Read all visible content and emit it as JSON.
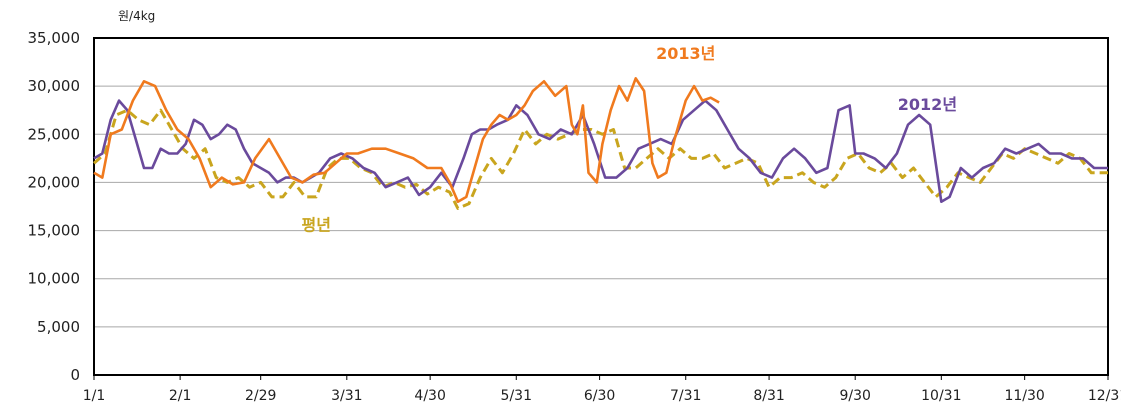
{
  "chart_data": {
    "type": "line",
    "ylabel": "원/4kg",
    "ylim": [
      0,
      35000
    ],
    "yticks": [
      0,
      5000,
      10000,
      15000,
      20000,
      25000,
      30000,
      35000
    ],
    "ytick_labels": [
      "0",
      "5,000",
      "10,000",
      "15,000",
      "20,000",
      "25,000",
      "30,000",
      "35,000"
    ],
    "x_unit": "day of year",
    "xlim": [
      0,
      365
    ],
    "xticks": [
      0,
      31,
      60,
      91,
      121,
      152,
      182,
      213,
      243,
      274,
      305,
      335,
      365
    ],
    "xtick_labels": [
      "1/1",
      "2/1",
      "2/29",
      "3/31",
      "4/30",
      "5/31",
      "6/30",
      "7/31",
      "8/31",
      "9/30",
      "10/31",
      "11/30",
      "12/31"
    ],
    "grid": true,
    "series": [
      {
        "name": "2013년",
        "color": "#f07a1e",
        "style": "solid",
        "points": [
          [
            0,
            21000
          ],
          [
            3,
            20500
          ],
          [
            6,
            25000
          ],
          [
            10,
            25500
          ],
          [
            14,
            28500
          ],
          [
            18,
            30500
          ],
          [
            22,
            30000
          ],
          [
            26,
            27500
          ],
          [
            30,
            25500
          ],
          [
            34,
            24500
          ],
          [
            38,
            22500
          ],
          [
            42,
            19500
          ],
          [
            46,
            20500
          ],
          [
            50,
            19800
          ],
          [
            54,
            20000
          ],
          [
            58,
            22500
          ],
          [
            63,
            24500
          ],
          [
            67,
            22500
          ],
          [
            71,
            20500
          ],
          [
            75,
            20000
          ],
          [
            79,
            20800
          ],
          [
            83,
            21000
          ],
          [
            87,
            22000
          ],
          [
            91,
            23000
          ],
          [
            95,
            23000
          ],
          [
            100,
            23500
          ],
          [
            105,
            23500
          ],
          [
            110,
            23000
          ],
          [
            115,
            22500
          ],
          [
            120,
            21500
          ],
          [
            125,
            21500
          ],
          [
            128,
            20000
          ],
          [
            131,
            18000
          ],
          [
            134,
            18500
          ],
          [
            137,
            21500
          ],
          [
            140,
            24500
          ],
          [
            143,
            26000
          ],
          [
            146,
            27000
          ],
          [
            149,
            26500
          ],
          [
            152,
            27000
          ],
          [
            155,
            28000
          ],
          [
            158,
            29500
          ],
          [
            162,
            30500
          ],
          [
            166,
            29000
          ],
          [
            170,
            30000
          ],
          [
            172,
            26000
          ],
          [
            174,
            25000
          ],
          [
            176,
            28000
          ],
          [
            178,
            21000
          ],
          [
            181,
            20000
          ],
          [
            183,
            24000
          ],
          [
            186,
            27500
          ],
          [
            189,
            30000
          ],
          [
            192,
            28500
          ],
          [
            195,
            30800
          ],
          [
            198,
            29500
          ],
          [
            201,
            22000
          ],
          [
            203,
            20500
          ],
          [
            206,
            21000
          ],
          [
            209,
            24500
          ],
          [
            213,
            28500
          ],
          [
            216,
            30000
          ],
          [
            219,
            28500
          ],
          [
            222,
            28800
          ],
          [
            225,
            28300
          ]
        ]
      },
      {
        "name": "2012년",
        "color": "#6a4a9c",
        "style": "solid",
        "points": [
          [
            0,
            22500
          ],
          [
            3,
            23000
          ],
          [
            6,
            26500
          ],
          [
            9,
            28500
          ],
          [
            12,
            27500
          ],
          [
            15,
            24500
          ],
          [
            18,
            21500
          ],
          [
            21,
            21500
          ],
          [
            24,
            23500
          ],
          [
            27,
            23000
          ],
          [
            30,
            23000
          ],
          [
            33,
            24000
          ],
          [
            36,
            26500
          ],
          [
            39,
            26000
          ],
          [
            42,
            24500
          ],
          [
            45,
            25000
          ],
          [
            48,
            26000
          ],
          [
            51,
            25500
          ],
          [
            54,
            23500
          ],
          [
            57,
            22000
          ],
          [
            60,
            21500
          ],
          [
            63,
            21000
          ],
          [
            66,
            20000
          ],
          [
            69,
            20500
          ],
          [
            72,
            20500
          ],
          [
            75,
            20000
          ],
          [
            78,
            20500
          ],
          [
            81,
            21000
          ],
          [
            85,
            22500
          ],
          [
            89,
            23000
          ],
          [
            93,
            22500
          ],
          [
            97,
            21500
          ],
          [
            101,
            21000
          ],
          [
            105,
            19500
          ],
          [
            109,
            20000
          ],
          [
            113,
            20500
          ],
          [
            117,
            18700
          ],
          [
            121,
            19500
          ],
          [
            125,
            21000
          ],
          [
            129,
            19500
          ],
          [
            133,
            22500
          ],
          [
            136,
            25000
          ],
          [
            139,
            25500
          ],
          [
            142,
            25500
          ],
          [
            145,
            26000
          ],
          [
            149,
            26500
          ],
          [
            152,
            28000
          ],
          [
            156,
            27000
          ],
          [
            160,
            25000
          ],
          [
            164,
            24500
          ],
          [
            168,
            25500
          ],
          [
            172,
            25000
          ],
          [
            176,
            27000
          ],
          [
            180,
            24000
          ],
          [
            184,
            20500
          ],
          [
            188,
            20500
          ],
          [
            192,
            21500
          ],
          [
            196,
            23500
          ],
          [
            200,
            24000
          ],
          [
            204,
            24500
          ],
          [
            208,
            24000
          ],
          [
            212,
            26500
          ],
          [
            216,
            27500
          ],
          [
            220,
            28500
          ],
          [
            224,
            27500
          ],
          [
            228,
            25500
          ],
          [
            232,
            23500
          ],
          [
            236,
            22500
          ],
          [
            240,
            21000
          ],
          [
            244,
            20500
          ],
          [
            248,
            22500
          ],
          [
            252,
            23500
          ],
          [
            256,
            22500
          ],
          [
            260,
            21000
          ],
          [
            264,
            21500
          ],
          [
            268,
            27500
          ],
          [
            272,
            28000
          ],
          [
            274,
            23000
          ],
          [
            277,
            23000
          ],
          [
            281,
            22500
          ],
          [
            285,
            21500
          ],
          [
            289,
            23000
          ],
          [
            293,
            26000
          ],
          [
            297,
            27000
          ],
          [
            301,
            26000
          ],
          [
            305,
            18000
          ],
          [
            308,
            18500
          ],
          [
            312,
            21500
          ],
          [
            316,
            20500
          ],
          [
            320,
            21500
          ],
          [
            324,
            22000
          ],
          [
            328,
            23500
          ],
          [
            332,
            23000
          ],
          [
            336,
            23500
          ],
          [
            340,
            24000
          ],
          [
            344,
            23000
          ],
          [
            348,
            23000
          ],
          [
            352,
            22500
          ],
          [
            356,
            22500
          ],
          [
            360,
            21500
          ],
          [
            365,
            21500
          ]
        ]
      },
      {
        "name": "평년",
        "color": "#c9a51e",
        "style": "dashed",
        "points": [
          [
            0,
            22000
          ],
          [
            4,
            23000
          ],
          [
            8,
            27000
          ],
          [
            12,
            27500
          ],
          [
            16,
            26500
          ],
          [
            20,
            26000
          ],
          [
            24,
            27500
          ],
          [
            28,
            25500
          ],
          [
            32,
            23500
          ],
          [
            36,
            22500
          ],
          [
            40,
            23500
          ],
          [
            44,
            20500
          ],
          [
            48,
            20000
          ],
          [
            52,
            20500
          ],
          [
            56,
            19500
          ],
          [
            60,
            20000
          ],
          [
            64,
            18500
          ],
          [
            68,
            18500
          ],
          [
            72,
            20000
          ],
          [
            76,
            18500
          ],
          [
            80,
            18500
          ],
          [
            84,
            21500
          ],
          [
            88,
            22500
          ],
          [
            92,
            22500
          ],
          [
            96,
            21500
          ],
          [
            100,
            21000
          ],
          [
            104,
            19500
          ],
          [
            108,
            20000
          ],
          [
            112,
            19500
          ],
          [
            116,
            19800
          ],
          [
            120,
            18800
          ],
          [
            124,
            19500
          ],
          [
            128,
            19000
          ],
          [
            131,
            17300
          ],
          [
            135,
            17800
          ],
          [
            139,
            20500
          ],
          [
            143,
            22500
          ],
          [
            147,
            21000
          ],
          [
            151,
            23000
          ],
          [
            155,
            25500
          ],
          [
            159,
            24000
          ],
          [
            163,
            25000
          ],
          [
            167,
            24500
          ],
          [
            171,
            25000
          ],
          [
            175,
            25500
          ],
          [
            179,
            25500
          ],
          [
            183,
            25000
          ],
          [
            187,
            25500
          ],
          [
            191,
            21500
          ],
          [
            195,
            21500
          ],
          [
            199,
            22500
          ],
          [
            203,
            23500
          ],
          [
            207,
            22500
          ],
          [
            211,
            23500
          ],
          [
            215,
            22500
          ],
          [
            219,
            22500
          ],
          [
            223,
            23000
          ],
          [
            227,
            21500
          ],
          [
            231,
            22000
          ],
          [
            235,
            22500
          ],
          [
            239,
            22000
          ],
          [
            243,
            19500
          ],
          [
            247,
            20500
          ],
          [
            251,
            20500
          ],
          [
            255,
            21000
          ],
          [
            259,
            20000
          ],
          [
            263,
            19500
          ],
          [
            267,
            20500
          ],
          [
            271,
            22500
          ],
          [
            275,
            23000
          ],
          [
            279,
            21500
          ],
          [
            283,
            21000
          ],
          [
            287,
            22000
          ],
          [
            291,
            20500
          ],
          [
            295,
            21500
          ],
          [
            299,
            20000
          ],
          [
            303,
            18500
          ],
          [
            307,
            19500
          ],
          [
            311,
            21000
          ],
          [
            315,
            20500
          ],
          [
            319,
            20000
          ],
          [
            323,
            21500
          ],
          [
            327,
            23000
          ],
          [
            331,
            22500
          ],
          [
            335,
            23500
          ],
          [
            339,
            23000
          ],
          [
            343,
            22500
          ],
          [
            347,
            22000
          ],
          [
            351,
            23000
          ],
          [
            355,
            22500
          ],
          [
            359,
            21000
          ],
          [
            365,
            21000
          ]
        ]
      }
    ],
    "annotations": [
      {
        "text": "2013년",
        "series": "2013년",
        "at_x": 213,
        "at_y": 32800
      },
      {
        "text": "2012년",
        "series": "2012년",
        "at_x": 300,
        "at_y": 27500
      },
      {
        "text": "평년",
        "series": "평년",
        "at_x": 80,
        "at_y": 15000
      }
    ]
  }
}
